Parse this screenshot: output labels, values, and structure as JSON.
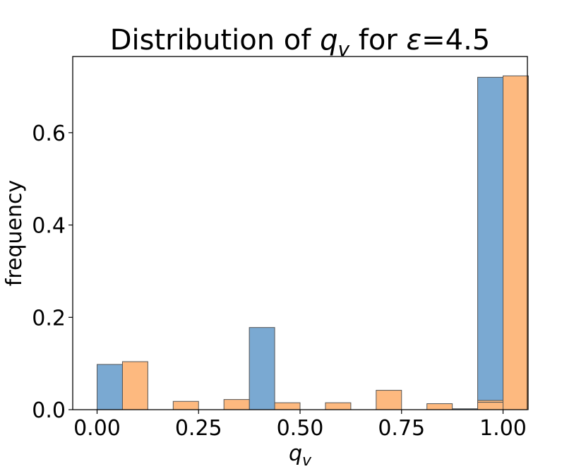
{
  "chart_data": {
    "type": "bar",
    "title_prefix": "Distribution of ",
    "title_var": "q",
    "title_sub": "v",
    "title_mid": " for ",
    "title_eps": "ε",
    "title_suffix": "=4.5",
    "xlabel_var": "q",
    "xlabel_sub": "v",
    "ylabel": "frequency",
    "xlim": [
      -0.06,
      1.06
    ],
    "ylim": [
      0,
      0.765
    ],
    "x_ticks": [
      0.0,
      0.25,
      0.5,
      0.75,
      1.0
    ],
    "x_tick_labels": [
      "0.00",
      "0.25",
      "0.50",
      "0.75",
      "1.00"
    ],
    "y_ticks": [
      0.0,
      0.2,
      0.4,
      0.6
    ],
    "y_tick_labels": [
      "0.0",
      "0.2",
      "0.4",
      "0.6"
    ],
    "bin_width": 0.125,
    "bin_starts": [
      0.0,
      0.125,
      0.25,
      0.375,
      0.5,
      0.625,
      0.75,
      0.875
    ],
    "series": [
      {
        "color": "#7aa9d2",
        "bins": [
          {
            "bin": 0,
            "value": 0.098
          },
          {
            "bin": 3,
            "value": 0.178
          },
          {
            "bin": 7,
            "value": 0.002
          },
          {
            "bin": 8,
            "value": 0.72
          }
        ]
      },
      {
        "color": "#fdb97f",
        "bins": [
          {
            "bin": 0,
            "value": 0.104
          },
          {
            "bin": 1,
            "value": 0.018
          },
          {
            "bin": 2,
            "value": 0.022
          },
          {
            "bin": 3,
            "value": 0.015
          },
          {
            "bin": 4,
            "value": 0.015
          },
          {
            "bin": 5,
            "value": 0.042
          },
          {
            "bin": 6,
            "value": 0.013
          },
          {
            "bin": 7,
            "value": 0.02
          },
          {
            "bin": 8,
            "value": 0.016
          },
          {
            "bin": 9,
            "value": 0.723
          }
        ]
      }
    ],
    "bar_edge_color": "#555555",
    "grid": false,
    "legend": "none"
  }
}
